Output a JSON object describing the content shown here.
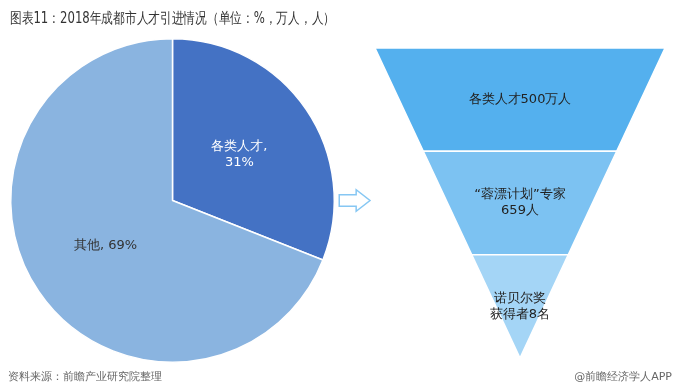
{
  "chart_data": {
    "type": "pie",
    "title": "图表11：2018年成都市人才引进情况（单位：%，万人，人）",
    "categories": [
      "各类人才",
      "其他"
    ],
    "values": [
      31,
      69
    ],
    "value_labels": [
      "各类人才,\n31%",
      "其他, 69%"
    ],
    "colors": [
      "#4472c4",
      "#8ab4e0"
    ],
    "data_labels": true,
    "annotations": {
      "funnel": [
        "各类人才500万人",
        "“蓉漂计划”专家\n659人",
        "诺贝尔奖\n获得者8名"
      ],
      "footer": [
        "资料来源：前瞻产业研究院整理",
        "@前瞻经济学人APP"
      ]
    }
  }
}
